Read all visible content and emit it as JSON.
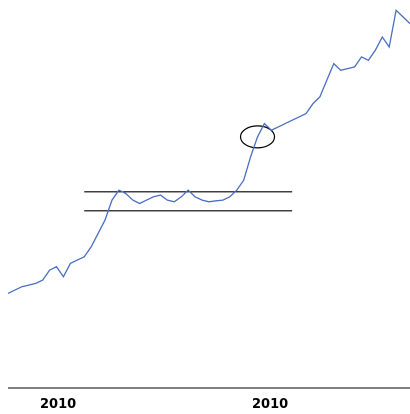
{
  "chart_data": {
    "type": "line",
    "title": "",
    "xlabel": "",
    "ylabel": "",
    "x_tick_labels": [
      "2010",
      "2010"
    ],
    "grid": false,
    "legend": false,
    "line_color": "#4a6fc4",
    "annotation_color": "#000000",
    "ylim": [
      0,
      100
    ],
    "series": [
      {
        "values": [
          14,
          15,
          16,
          16.5,
          17,
          18,
          21,
          22,
          19,
          23,
          24,
          25,
          28,
          32,
          36,
          42,
          45,
          44,
          42,
          41,
          42,
          43,
          43.5,
          42,
          41.5,
          43,
          45,
          43,
          42,
          41.5,
          41.8,
          42,
          43,
          45,
          48,
          55,
          61,
          65,
          63,
          64,
          65,
          66,
          67,
          68,
          71,
          73,
          78,
          83,
          81,
          81.5,
          82,
          85,
          84,
          87,
          91,
          88,
          99,
          97,
          95
        ]
      }
    ],
    "annotations": [
      {
        "type": "channel",
        "upper": 44.5,
        "lower": 38.8,
        "x_from": 11,
        "x_to": 41
      },
      {
        "type": "ellipse",
        "at_index": 36
      }
    ]
  }
}
